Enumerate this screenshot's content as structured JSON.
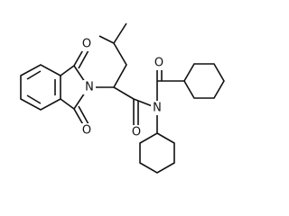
{
  "atoms": [
    {
      "label": "O"
    },
    {
      "label": "N"
    },
    {
      "label": "O"
    },
    {
      "label": "O"
    },
    {
      "label": "N"
    },
    {
      "label": "O"
    }
  ]
}
